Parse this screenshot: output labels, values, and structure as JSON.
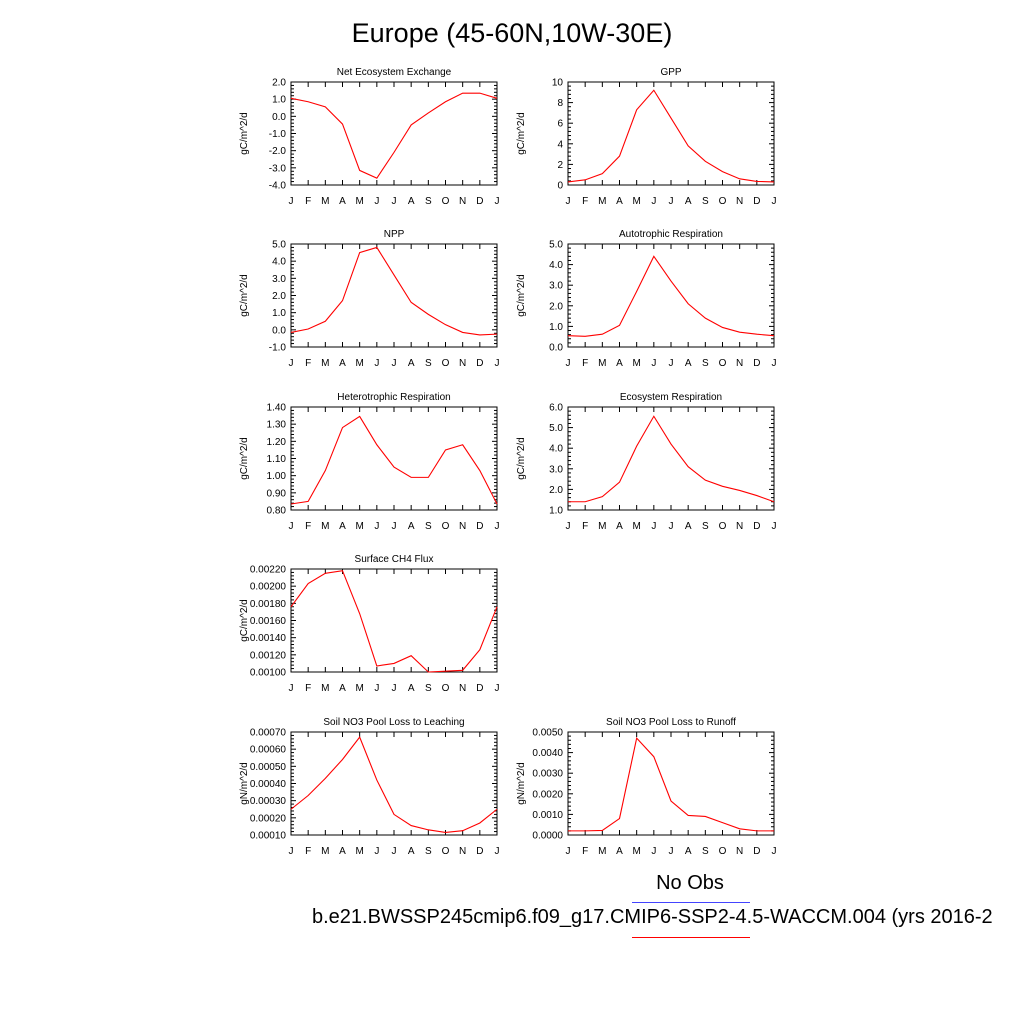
{
  "title": "Europe (45-60N,10W-30E)",
  "month_ticks": [
    "J",
    "F",
    "M",
    "A",
    "M",
    "J",
    "J",
    "A",
    "S",
    "O",
    "N",
    "D",
    "J"
  ],
  "legend": {
    "obs_label": "No Obs",
    "obs_color": "#4444ff",
    "case_label": "b.e21.BWSSP245cmip6.f09_g17.CMIP6-SSP2-4.5-WACCM.004 (yrs 2016-2",
    "case_color": "#ff0000"
  },
  "line_color": "#ff0000",
  "chart_data": [
    {
      "type": "line",
      "title": "Net Ecosystem Exchange",
      "ylabel": "gC/m^2/d",
      "ylim": [
        -4.0,
        2.0
      ],
      "yticks": [
        "2.0",
        "1.0",
        "0.0",
        "-1.0",
        "-2.0",
        "-3.0",
        "-4.0"
      ],
      "series": [
        {
          "values": [
            1.05,
            0.85,
            0.55,
            -0.45,
            -3.15,
            -3.6,
            -2.1,
            -0.5,
            0.2,
            0.85,
            1.35,
            1.35,
            1.05
          ]
        }
      ]
    },
    {
      "type": "line",
      "title": "GPP",
      "ylabel": "gC/m^2/d",
      "ylim": [
        0,
        10
      ],
      "yticks": [
        "10",
        "8",
        "6",
        "4",
        "2",
        "0"
      ],
      "series": [
        {
          "values": [
            0.3,
            0.5,
            1.1,
            2.8,
            7.3,
            9.2,
            6.5,
            3.8,
            2.3,
            1.3,
            0.6,
            0.35,
            0.3
          ]
        }
      ]
    },
    {
      "type": "line",
      "title": "NPP",
      "ylabel": "gC/m^2/d",
      "ylim": [
        -1.0,
        5.0
      ],
      "yticks": [
        "5.0",
        "4.0",
        "3.0",
        "2.0",
        "1.0",
        "0.0",
        "-1.0"
      ],
      "series": [
        {
          "values": [
            -0.15,
            0.05,
            0.5,
            1.7,
            4.5,
            4.8,
            3.2,
            1.6,
            0.9,
            0.3,
            -0.15,
            -0.3,
            -0.25
          ]
        }
      ]
    },
    {
      "type": "line",
      "title": "Autotrophic Respiration",
      "ylabel": "gC/m^2/d",
      "ylim": [
        0.0,
        5.0
      ],
      "yticks": [
        "5.0",
        "4.0",
        "3.0",
        "2.0",
        "1.0",
        "0.0"
      ],
      "series": [
        {
          "values": [
            0.55,
            0.52,
            0.62,
            1.05,
            2.7,
            4.4,
            3.2,
            2.1,
            1.4,
            0.95,
            0.72,
            0.62,
            0.55
          ]
        }
      ]
    },
    {
      "type": "line",
      "title": "Heterotrophic Respiration",
      "ylabel": "gC/m^2/d",
      "ylim": [
        0.8,
        1.4
      ],
      "yticks": [
        "1.40",
        "1.30",
        "1.20",
        "1.10",
        "1.00",
        "0.90",
        "0.80"
      ],
      "series": [
        {
          "values": [
            0.835,
            0.85,
            1.03,
            1.28,
            1.345,
            1.18,
            1.05,
            0.99,
            0.99,
            1.15,
            1.18,
            1.03,
            0.835
          ]
        }
      ]
    },
    {
      "type": "line",
      "title": "Ecosystem Respiration",
      "ylabel": "gC/m^2/d",
      "ylim": [
        1.0,
        6.0
      ],
      "yticks": [
        "6.0",
        "5.0",
        "4.0",
        "3.0",
        "2.0",
        "1.0"
      ],
      "series": [
        {
          "values": [
            1.4,
            1.4,
            1.65,
            2.35,
            4.1,
            5.55,
            4.2,
            3.1,
            2.45,
            2.15,
            1.95,
            1.7,
            1.4
          ]
        }
      ]
    },
    {
      "type": "line",
      "title": "Surface CH4 Flux",
      "ylabel": "gC/m^2/d",
      "ylim": [
        0.001,
        0.0022
      ],
      "yticks": [
        "0.00220",
        "0.00200",
        "0.00180",
        "0.00160",
        "0.00140",
        "0.00120",
        "0.00100"
      ],
      "series": [
        {
          "values": [
            0.00176,
            0.00203,
            0.00215,
            0.00218,
            0.00168,
            0.00107,
            0.0011,
            0.00119,
            0.001,
            0.00101,
            0.00102,
            0.00126,
            0.00176
          ]
        }
      ]
    },
    null,
    {
      "type": "line",
      "title": "Soil NO3 Pool Loss to Leaching",
      "ylabel": "gN/m^2/d",
      "ylim": [
        0.0001,
        0.0007
      ],
      "yticks": [
        "0.00070",
        "0.00060",
        "0.00050",
        "0.00040",
        "0.00030",
        "0.00020",
        "0.00010"
      ],
      "series": [
        {
          "values": [
            0.00025,
            0.00033,
            0.00043,
            0.00054,
            0.00067,
            0.00042,
            0.00022,
            0.000155,
            0.00013,
            0.000115,
            0.000125,
            0.00017,
            0.00025
          ]
        }
      ]
    },
    {
      "type": "line",
      "title": "Soil NO3 Pool Loss to Runoff",
      "ylabel": "gN/m^2/d",
      "ylim": [
        0.0,
        0.005
      ],
      "yticks": [
        "0.0050",
        "0.0040",
        "0.0030",
        "0.0020",
        "0.0010",
        "0.0000"
      ],
      "series": [
        {
          "values": [
            0.0002,
            0.0002,
            0.00022,
            0.0008,
            0.0047,
            0.0038,
            0.00165,
            0.00095,
            0.0009,
            0.0006,
            0.0003,
            0.0002,
            0.0002
          ]
        }
      ]
    }
  ]
}
